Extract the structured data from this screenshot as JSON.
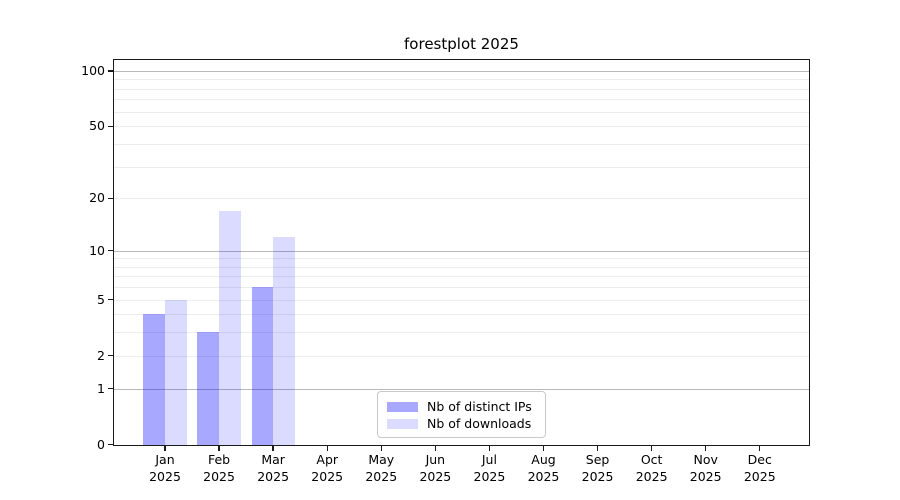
{
  "title": "forestplot 2025",
  "chart_data": {
    "type": "bar",
    "title": "forestplot 2025",
    "y_scale": "log1p",
    "ylim": [
      0,
      116
    ],
    "y_ticks": [
      0,
      1,
      2,
      5,
      10,
      20,
      50,
      100
    ],
    "y_major_gridlines": [
      1,
      10,
      100
    ],
    "grid": true,
    "legend_position": "lower center",
    "categories": [
      "Jan",
      "Feb",
      "Mar",
      "Apr",
      "May",
      "Jun",
      "Jul",
      "Aug",
      "Sep",
      "Oct",
      "Nov",
      "Dec"
    ],
    "year_label": "2025",
    "series": [
      {
        "name": "Nb of distinct IPs",
        "color": "#0000ff",
        "alpha": 0.34,
        "rendered_color": "#a9a9f7",
        "values": [
          4,
          3,
          6,
          0,
          0,
          0,
          0,
          0,
          0,
          0,
          0,
          0
        ]
      },
      {
        "name": "Nb of downloads",
        "color": "#0000ff",
        "alpha": 0.14,
        "rendered_color": "#dcdcfb",
        "values": [
          5,
          17,
          12,
          0,
          0,
          0,
          0,
          0,
          0,
          0,
          0,
          0
        ]
      }
    ],
    "colors": {
      "major_gridline": "#b9b9b9",
      "minor_gridline": "#ededed",
      "axis": "#1a1a1a",
      "background": "#ffffff"
    }
  }
}
